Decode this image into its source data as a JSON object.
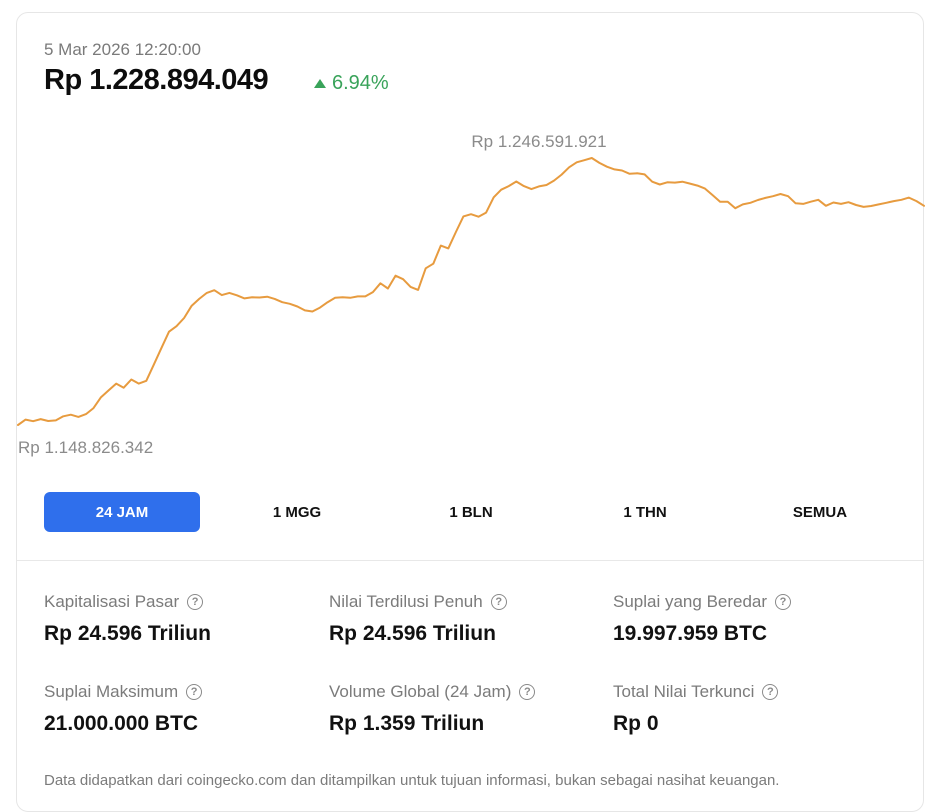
{
  "header": {
    "timestamp": "5 Mar 2026 12:20:00",
    "price": "Rp 1.228.894.049",
    "change": "6.94%",
    "change_color": "#39a35a",
    "change_icon": "triangle-up-icon"
  },
  "chart_data": {
    "type": "line",
    "title": "",
    "xlabel": "",
    "ylabel": "",
    "line_color": "#e79b3f",
    "grid": false,
    "legend": "none",
    "ylim": [
      1148826342,
      1246591921
    ],
    "high_label": "Rp 1.246.591.921",
    "low_label": "Rp 1.148.826.342",
    "series": [
      {
        "values": [
          1148826342,
          1150800000,
          1150200000,
          1151000000,
          1150300000,
          1150500000,
          1152000000,
          1152600000,
          1151800000,
          1152800000,
          1155000000,
          1159000000,
          1161500000,
          1164000000,
          1162500000,
          1165500000,
          1164000000,
          1165000000,
          1171000000,
          1177000000,
          1183000000,
          1185000000,
          1188000000,
          1192500000,
          1195000000,
          1197200000,
          1198200000,
          1196400000,
          1197200000,
          1196300000,
          1195200000,
          1195600000,
          1195500000,
          1195800000,
          1195000000,
          1193800000,
          1193200000,
          1192200000,
          1190800000,
          1190400000,
          1191800000,
          1193800000,
          1195400000,
          1195600000,
          1195400000,
          1195900000,
          1195900000,
          1197500000,
          1200700000,
          1198800000,
          1203500000,
          1202200000,
          1199400000,
          1198300000,
          1206200000,
          1207900000,
          1214500000,
          1213500000,
          1219500000,
          1225200000,
          1226000000,
          1225100000,
          1226600000,
          1232200000,
          1235000000,
          1236300000,
          1238000000,
          1236300000,
          1235200000,
          1236200000,
          1236700000,
          1238300000,
          1240500000,
          1243200000,
          1245000000,
          1245800000,
          1246591921,
          1244800000,
          1243400000,
          1242400000,
          1242000000,
          1240800000,
          1241000000,
          1240600000,
          1237900000,
          1236900000,
          1237700000,
          1237600000,
          1237900000,
          1237200000,
          1236500000,
          1235400000,
          1233000000,
          1230600000,
          1230600000,
          1228200000,
          1229600000,
          1230200000,
          1231200000,
          1232000000,
          1232600000,
          1233400000,
          1232600000,
          1230000000,
          1229800000,
          1230600000,
          1231300000,
          1229100000,
          1230300000,
          1229800000,
          1230400000,
          1229400000,
          1228700000,
          1229000000,
          1229600000,
          1230200000,
          1230800000,
          1231300000,
          1232100000,
          1230800000,
          1229100000
        ]
      }
    ]
  },
  "ranges": [
    {
      "label": "24 JAM",
      "active": true
    },
    {
      "label": "1 MGG",
      "active": false
    },
    {
      "label": "1 BLN",
      "active": false
    },
    {
      "label": "1 THN",
      "active": false
    },
    {
      "label": "SEMUA",
      "active": false
    }
  ],
  "active_color": "#2f6fec",
  "help_icon": "question-circle-icon",
  "stats": [
    {
      "label": "Kapitalisasi Pasar",
      "value": "Rp 24.596 Triliun"
    },
    {
      "label": "Nilai Terdilusi Penuh",
      "value": "Rp 24.596 Triliun"
    },
    {
      "label": "Suplai yang Beredar",
      "value": "19.997.959 BTC"
    },
    {
      "label": "Suplai Maksimum",
      "value": "21.000.000 BTC"
    },
    {
      "label": "Volume Global (24 Jam)",
      "value": "Rp 1.359 Triliun"
    },
    {
      "label": "Total Nilai Terkunci",
      "value": "Rp 0"
    }
  ],
  "footer": {
    "note": "Data didapatkan dari coingecko.com dan ditampilkan untuk tujuan informasi, bukan sebagai nasihat keuangan."
  }
}
